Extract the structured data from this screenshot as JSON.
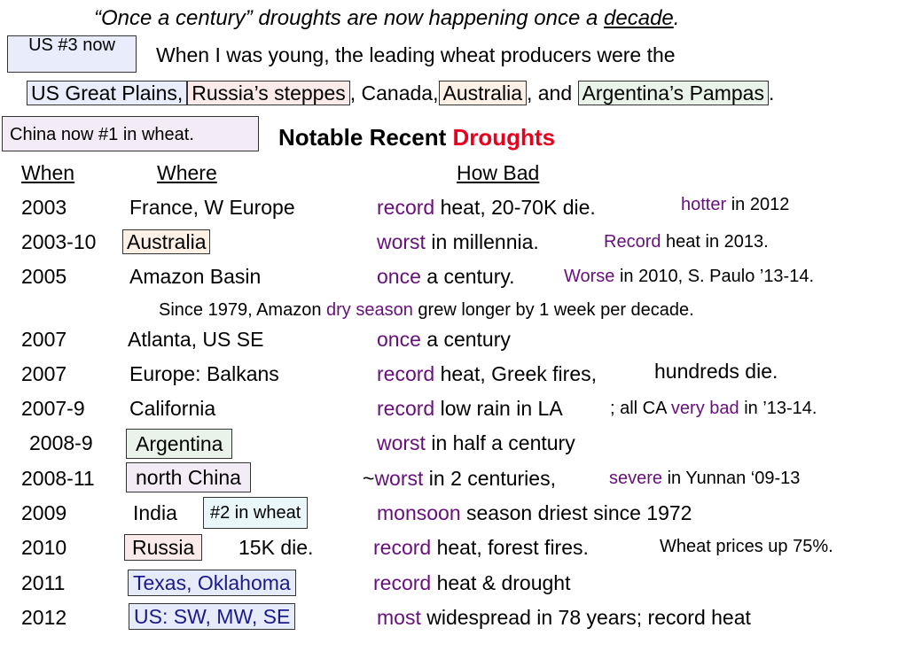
{
  "header": {
    "quote_open": "“Once a century” droughts are now happening once a ",
    "quote_decade": "decade",
    "quote_end": "."
  },
  "us3_box": "US #3 now",
  "intro": {
    "line1": "When I was young, the leading wheat producers were the",
    "us_great_plains": "US Great Plains,",
    "russia_steppes": "Russia’s steppes",
    "canada": ", Canada,",
    "australia": "Australia",
    "and": ", and",
    "argentina_pampas": "Argentina’s Pampas",
    "period": "."
  },
  "china_box": "China now #1 in wheat.",
  "section_title": {
    "black": "Notable Recent ",
    "red": "Droughts"
  },
  "columns": {
    "when": "When",
    "where": "Where",
    "how_bad": "How Bad"
  },
  "rows": [
    {
      "when": "2003",
      "where": "France, W Europe",
      "hb_key": "record",
      "hb_rest": " heat",
      "hb_more": ", 20-70K die.",
      "note_key": "hotter",
      "note_rest": " in 2012"
    },
    {
      "when": "2003-10",
      "where": "Australia",
      "hb_key": "worst",
      "hb_rest": " in millennia.",
      "note_key": "Record",
      "note_rest": " heat in 2013."
    },
    {
      "when": "2005",
      "where": "Amazon Basin",
      "hb_key": "once",
      "hb_rest": " a century.",
      "note_key": "Worse",
      "note_rest": " in 2010, S. Paulo ’13-14."
    },
    {
      "when": "2007",
      "where": "Atlanta, US SE",
      "hb_key": "once",
      "hb_rest": " a century"
    },
    {
      "when": "2007",
      "where": "Europe: Balkans",
      "hb_key": "record",
      "hb_rest": " heat, Greek fires,",
      "hb_more": "hundreds die."
    },
    {
      "when": "2007-9",
      "where": "California",
      "hb_key": "record",
      "hb_rest": " low rain in LA",
      "hb_more_a": "; all CA ",
      "hb_more_key": "very bad",
      "hb_more_b": " in ’13-14."
    },
    {
      "when": "2008-9",
      "where": "Argentina",
      "hb_key": "worst",
      "hb_rest": " in half a century"
    },
    {
      "when": "2008-11",
      "where": "north China",
      "hb_pre": "~",
      "hb_key": "worst",
      "hb_rest": " in 2 centuries, ",
      "hb_more_key": "severe",
      "hb_more_b": " in Yunnan ‘09-13"
    },
    {
      "when": "2009",
      "where": "India",
      "where_box": "#2 in wheat",
      "hb_key": "monsoon",
      "hb_rest": " season driest since 1972"
    },
    {
      "when": "2010",
      "where": "Russia",
      "where_extra": "15K die.",
      "hb_key": "record",
      "hb_rest": " heat, forest fires.",
      "note_plain": "Wheat prices up 75%."
    },
    {
      "when": "2011",
      "where": "Texas, Oklahoma",
      "hb_key": "record",
      "hb_rest": " heat & drought"
    },
    {
      "when": "2012",
      "where": "US: SW, MW, SE",
      "hb_key": "most",
      "hb_rest": " widespread in 78 years; record heat"
    }
  ],
  "amazon_note": {
    "pre": "Since 1979, Amazon ",
    "key": "dry season",
    "post": " grew longer by 1 week per decade."
  }
}
